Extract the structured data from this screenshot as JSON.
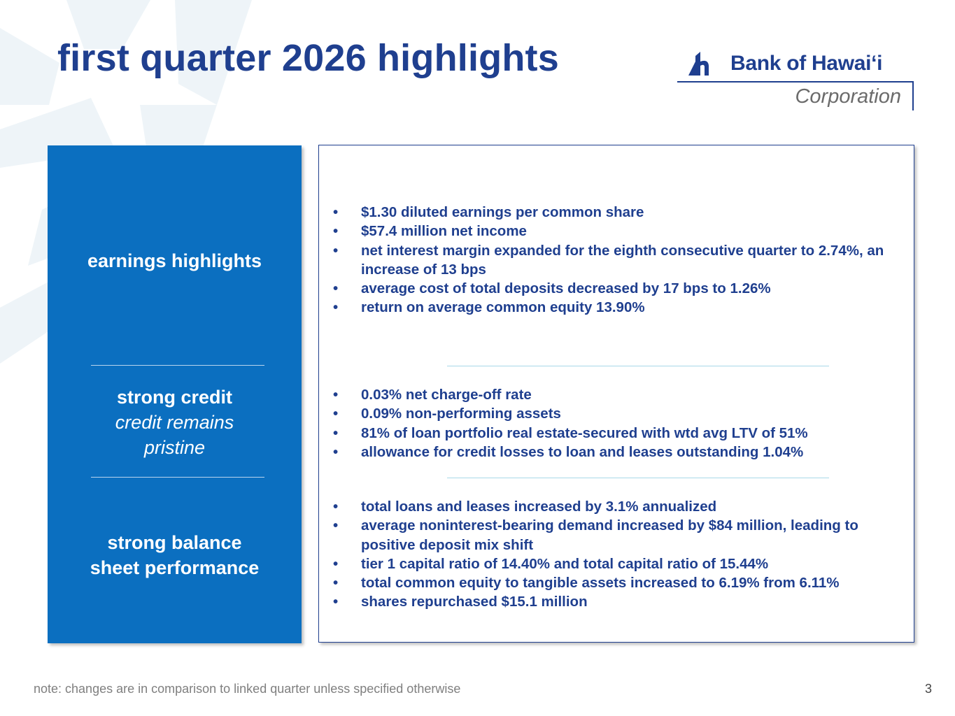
{
  "slide": {
    "title": "first quarter 2026 highlights",
    "page_number": "3",
    "footnote": "note: changes are in comparison to linked quarter unless specified otherwise"
  },
  "logo": {
    "name": "Bank of Hawaiʻi",
    "sub": "Corporation"
  },
  "colors": {
    "brand_blue": "#1f3f8f",
    "panel_blue": "#0b6fc0"
  },
  "sections": [
    {
      "heading": "earnings highlights",
      "subheading": "",
      "bullets": [
        "$1.30 diluted earnings per common share",
        "$57.4 million net income",
        "net interest margin expanded for the eighth consecutive quarter to 2.74%, an increase of 13 bps",
        "average cost of total deposits decreased by 17 bps to 1.26%",
        "return on average common equity 13.90%"
      ]
    },
    {
      "heading": "strong credit",
      "subheading": "credit remains pristine",
      "bullets": [
        "0.03% net charge-off rate",
        "0.09% non-performing assets",
        "81% of loan portfolio real estate-secured with wtd avg LTV of 51%",
        "allowance for credit losses to loan and leases outstanding 1.04%"
      ]
    },
    {
      "heading_line1": "strong balance",
      "heading_line2": "sheet performance",
      "bullets": [
        "total loans and leases increased by 3.1% annualized",
        "average noninterest-bearing demand increased by $84 million, leading to positive deposit mix shift",
        "tier 1 capital ratio of 14.40% and total capital ratio of 15.44%",
        "total common equity to tangible assets increased to 6.19% from 6.11%",
        "shares repurchased $15.1 million"
      ]
    }
  ]
}
